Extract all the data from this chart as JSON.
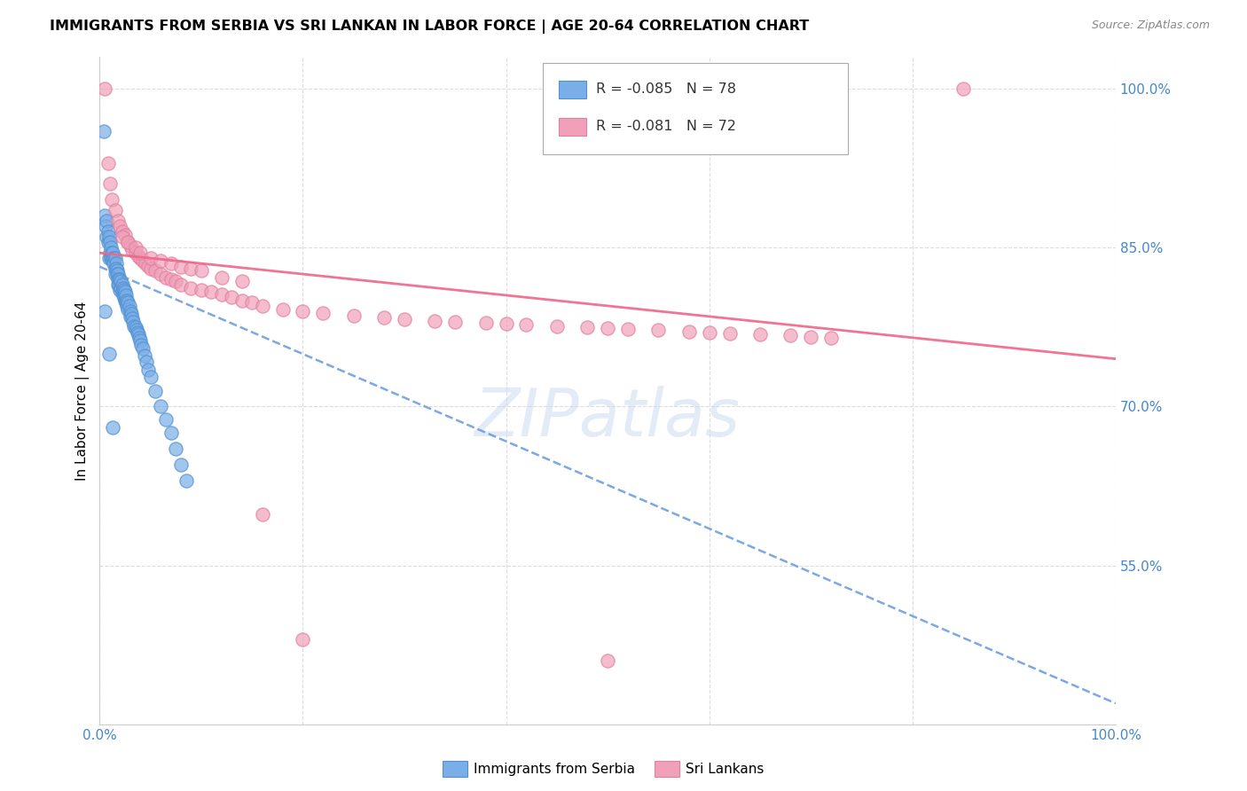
{
  "title": "IMMIGRANTS FROM SERBIA VS SRI LANKAN IN LABOR FORCE | AGE 20-64 CORRELATION CHART",
  "source": "Source: ZipAtlas.com",
  "ylabel": "In Labor Force | Age 20-64",
  "xlim": [
    0.0,
    1.0
  ],
  "ylim": [
    0.4,
    1.03
  ],
  "y_tick_labels_right": [
    "100.0%",
    "85.0%",
    "70.0%",
    "55.0%"
  ],
  "y_tick_vals_right": [
    1.0,
    0.85,
    0.7,
    0.55
  ],
  "serbia_color": "#7aaee8",
  "serbia_edge_color": "#5090d0",
  "sri_lanka_color": "#f0a0b8",
  "sri_lanka_edge_color": "#e080a0",
  "serbia_line_color": "#6699dd",
  "sri_lanka_line_color": "#ee6688",
  "serbia_R": "-0.085",
  "serbia_N": "78",
  "sri_lanka_R": "-0.081",
  "sri_lanka_N": "72",
  "watermark": "ZIPatlas",
  "watermark_color": "#c8d8f0",
  "serbia_scatter_x": [
    0.004,
    0.005,
    0.006,
    0.007,
    0.007,
    0.008,
    0.008,
    0.009,
    0.009,
    0.01,
    0.01,
    0.011,
    0.011,
    0.012,
    0.012,
    0.013,
    0.013,
    0.014,
    0.014,
    0.015,
    0.015,
    0.015,
    0.016,
    0.016,
    0.017,
    0.017,
    0.018,
    0.018,
    0.018,
    0.019,
    0.019,
    0.02,
    0.02,
    0.021,
    0.021,
    0.022,
    0.022,
    0.023,
    0.023,
    0.024,
    0.024,
    0.025,
    0.025,
    0.026,
    0.026,
    0.027,
    0.027,
    0.028,
    0.028,
    0.029,
    0.03,
    0.03,
    0.031,
    0.032,
    0.033,
    0.034,
    0.035,
    0.036,
    0.037,
    0.038,
    0.039,
    0.04,
    0.041,
    0.042,
    0.044,
    0.046,
    0.048,
    0.05,
    0.055,
    0.06,
    0.065,
    0.07,
    0.075,
    0.08,
    0.085,
    0.005,
    0.009,
    0.013
  ],
  "serbia_scatter_y": [
    0.96,
    0.88,
    0.87,
    0.875,
    0.86,
    0.865,
    0.855,
    0.86,
    0.84,
    0.855,
    0.845,
    0.85,
    0.84,
    0.845,
    0.84,
    0.845,
    0.838,
    0.84,
    0.835,
    0.84,
    0.83,
    0.825,
    0.835,
    0.83,
    0.828,
    0.825,
    0.825,
    0.82,
    0.815,
    0.82,
    0.815,
    0.82,
    0.81,
    0.818,
    0.812,
    0.815,
    0.808,
    0.812,
    0.805,
    0.81,
    0.803,
    0.808,
    0.8,
    0.805,
    0.798,
    0.8,
    0.795,
    0.798,
    0.792,
    0.795,
    0.79,
    0.785,
    0.787,
    0.783,
    0.78,
    0.776,
    0.775,
    0.772,
    0.77,
    0.768,
    0.765,
    0.762,
    0.758,
    0.755,
    0.748,
    0.742,
    0.735,
    0.728,
    0.715,
    0.7,
    0.688,
    0.675,
    0.66,
    0.645,
    0.63,
    0.79,
    0.75,
    0.68
  ],
  "sri_lanka_scatter_x": [
    0.005,
    0.008,
    0.01,
    0.012,
    0.015,
    0.018,
    0.02,
    0.022,
    0.025,
    0.028,
    0.03,
    0.032,
    0.035,
    0.038,
    0.04,
    0.042,
    0.045,
    0.048,
    0.05,
    0.055,
    0.06,
    0.065,
    0.07,
    0.075,
    0.08,
    0.09,
    0.1,
    0.11,
    0.12,
    0.13,
    0.14,
    0.15,
    0.16,
    0.18,
    0.2,
    0.22,
    0.25,
    0.28,
    0.3,
    0.33,
    0.35,
    0.38,
    0.4,
    0.42,
    0.45,
    0.48,
    0.5,
    0.52,
    0.55,
    0.58,
    0.6,
    0.62,
    0.65,
    0.68,
    0.7,
    0.72,
    0.022,
    0.028,
    0.035,
    0.04,
    0.05,
    0.06,
    0.07,
    0.08,
    0.09,
    0.1,
    0.12,
    0.14,
    0.16,
    0.2,
    0.85,
    0.5
  ],
  "sri_lanka_scatter_y": [
    1.0,
    0.93,
    0.91,
    0.895,
    0.885,
    0.875,
    0.87,
    0.865,
    0.862,
    0.855,
    0.852,
    0.848,
    0.845,
    0.842,
    0.84,
    0.838,
    0.835,
    0.833,
    0.83,
    0.828,
    0.825,
    0.822,
    0.82,
    0.818,
    0.815,
    0.812,
    0.81,
    0.808,
    0.806,
    0.803,
    0.8,
    0.798,
    0.795,
    0.792,
    0.79,
    0.788,
    0.786,
    0.784,
    0.782,
    0.781,
    0.78,
    0.779,
    0.778,
    0.777,
    0.776,
    0.775,
    0.774,
    0.773,
    0.772,
    0.771,
    0.77,
    0.769,
    0.768,
    0.767,
    0.766,
    0.765,
    0.86,
    0.855,
    0.85,
    0.845,
    0.84,
    0.838,
    0.835,
    0.832,
    0.83,
    0.828,
    0.822,
    0.818,
    0.598,
    0.48,
    1.0,
    0.46
  ],
  "serbia_trend_x": [
    0.0,
    1.0
  ],
  "serbia_trend_y": [
    0.832,
    0.42
  ],
  "sri_lanka_trend_x": [
    0.0,
    1.0
  ],
  "sri_lanka_trend_y": [
    0.845,
    0.745
  ],
  "grid_color": "#dddddd",
  "grid_linestyle": "--"
}
